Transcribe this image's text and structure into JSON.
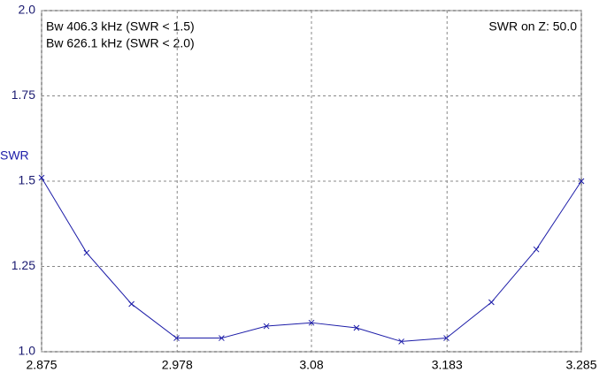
{
  "chart_data": {
    "type": "line",
    "annotations": [
      "Bw 406.3 kHz (SWR < 1.5)",
      "Bw 626.1 kHz (SWR < 2.0)",
      "SWR on Z: 50.0"
    ],
    "y_label": "SWR",
    "x": [
      2.875,
      2.9092,
      2.9433,
      2.9775,
      3.0117,
      3.0458,
      3.08,
      3.1142,
      3.1483,
      3.1825,
      3.2167,
      3.2508,
      3.285
    ],
    "values": [
      1.51,
      1.29,
      1.14,
      1.04,
      1.04,
      1.075,
      1.085,
      1.07,
      1.03,
      1.04,
      1.145,
      1.3,
      1.5
    ],
    "color": "#1c1ca8",
    "xlim": [
      2.875,
      3.285
    ],
    "xticks": [
      2.875,
      2.978,
      3.08,
      3.183,
      3.285
    ],
    "ylim": [
      1,
      2
    ],
    "yticks": [
      {
        "value": 1,
        "label": "1.0"
      },
      1.25,
      1.5,
      1.75,
      {
        "value": 2,
        "label": "2.0"
      }
    ],
    "grid": true
  }
}
